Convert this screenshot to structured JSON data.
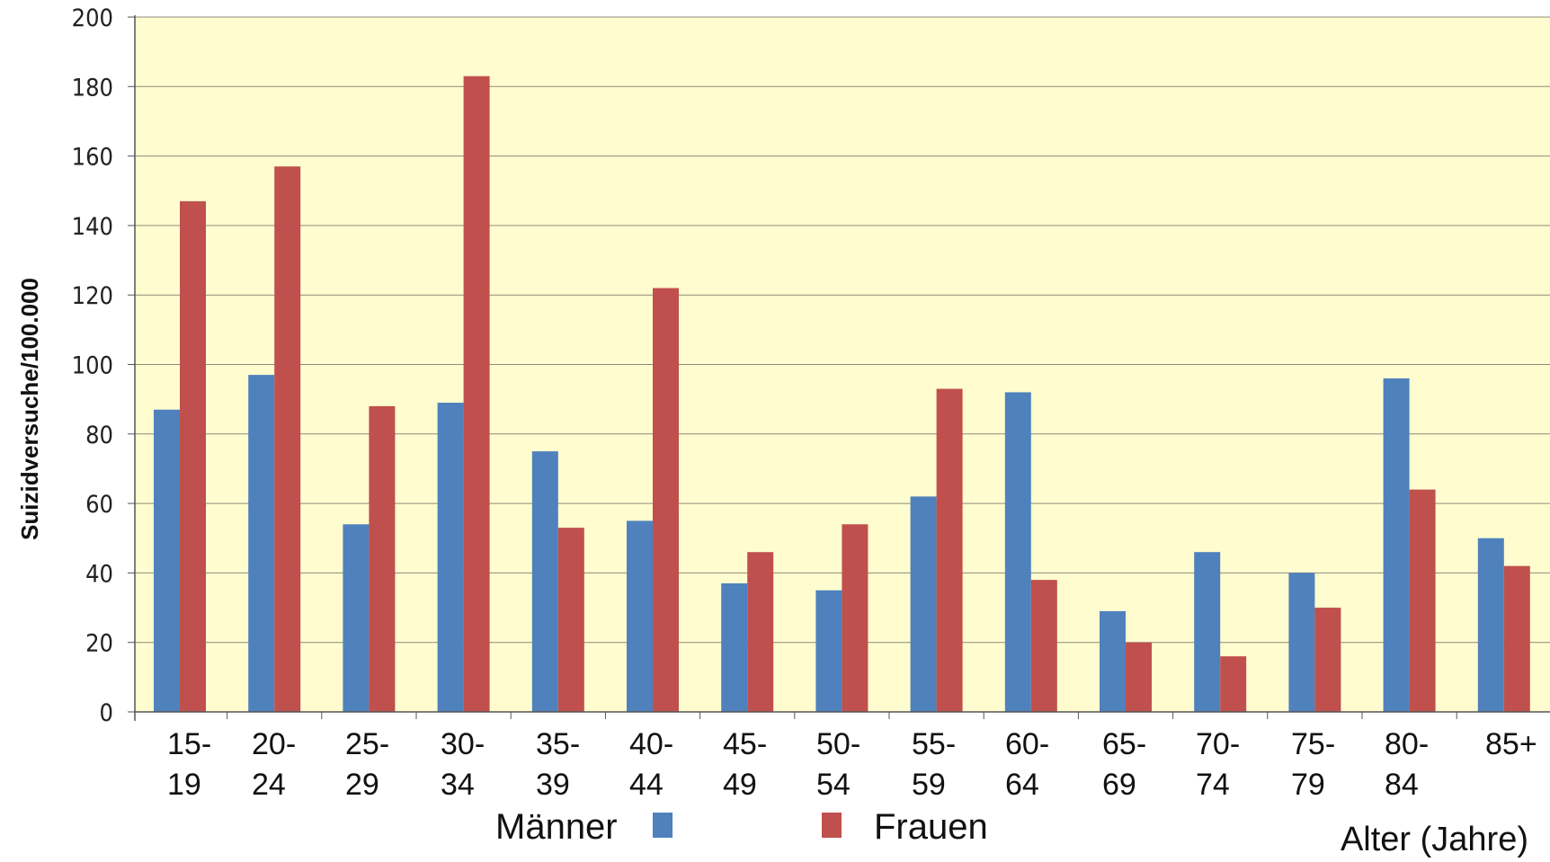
{
  "chart_data": {
    "type": "bar",
    "title": "",
    "ylabel": "Suizidversuche/100.000",
    "xlabel": "Alter (Jahre)",
    "ylim": [
      0,
      200
    ],
    "yticks": [
      "0",
      "20",
      "40",
      "60",
      "80",
      "100",
      "120",
      "140",
      "160",
      "180",
      "200"
    ],
    "grid": true,
    "legend_position": "bottom",
    "background_color": "#FFFDD0",
    "categories": [
      [
        "15-",
        "19"
      ],
      [
        "20-",
        "24"
      ],
      [
        "25-",
        "29"
      ],
      [
        "30-",
        "34"
      ],
      [
        "35-",
        "39"
      ],
      [
        "40-",
        "44"
      ],
      [
        "45-",
        "49"
      ],
      [
        "50-",
        "54"
      ],
      [
        "55-",
        "59"
      ],
      [
        "60-",
        "64"
      ],
      [
        "65-",
        "69"
      ],
      [
        "70-",
        "74"
      ],
      [
        "75-",
        "79"
      ],
      [
        "80-",
        "84"
      ],
      [
        "85+",
        ""
      ]
    ],
    "series": [
      {
        "name": "Männer",
        "color": "#4F81BD",
        "values": [
          87,
          97,
          54,
          89,
          75,
          55,
          37,
          35,
          62,
          92,
          29,
          46,
          40,
          96,
          50
        ]
      },
      {
        "name": "Frauen",
        "color": "#C0504D",
        "values": [
          147,
          157,
          88,
          183,
          53,
          122,
          46,
          54,
          93,
          38,
          20,
          16,
          30,
          64,
          42
        ]
      }
    ]
  }
}
